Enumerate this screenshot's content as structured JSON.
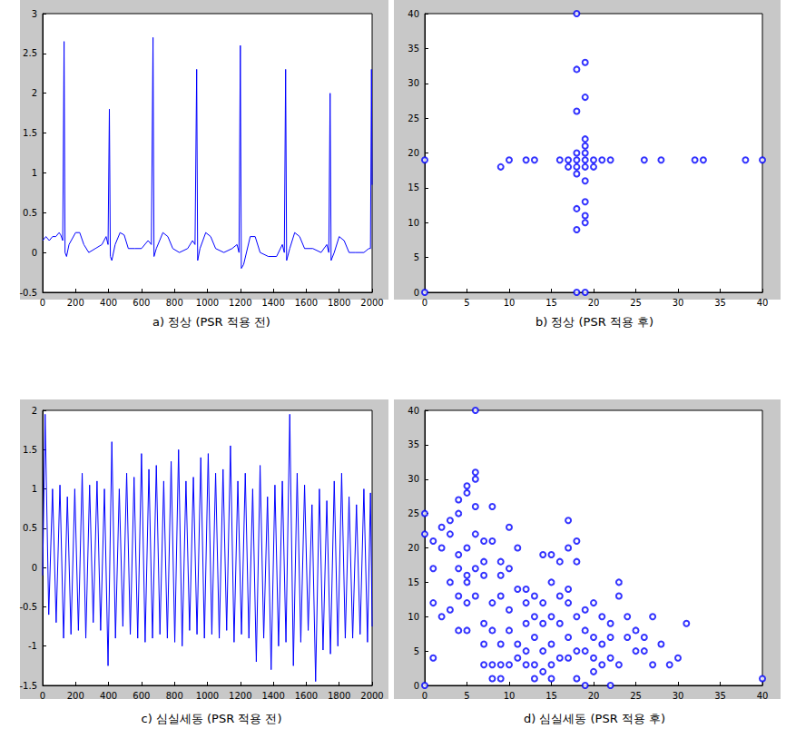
{
  "chart_data": [
    {
      "type": "line",
      "title": "a) 정상 (PSR 적용 전)",
      "color": "#0000ff",
      "line_style": "solid",
      "grid": false,
      "x": [
        0,
        20,
        40,
        60,
        80,
        100,
        110,
        122,
        130,
        136,
        145,
        160,
        200,
        225,
        250,
        280,
        320,
        360,
        385,
        397,
        405,
        411,
        420,
        440,
        470,
        495,
        520,
        560,
        600,
        640,
        660,
        670,
        676,
        690,
        730,
        760,
        790,
        830,
        880,
        910,
        925,
        935,
        941,
        955,
        990,
        1020,
        1050,
        1100,
        1150,
        1180,
        1192,
        1200,
        1206,
        1220,
        1260,
        1290,
        1320,
        1370,
        1420,
        1455,
        1467,
        1475,
        1481,
        1500,
        1530,
        1560,
        1590,
        1640,
        1690,
        1725,
        1737,
        1745,
        1751,
        1770,
        1800,
        1830,
        1860,
        1900,
        1950,
        1980,
        1990,
        1996,
        2000
      ],
      "values": [
        0.15,
        0.2,
        0.15,
        0.2,
        0.2,
        0.25,
        0.22,
        0.15,
        2.65,
        0,
        -0.05,
        0.1,
        0.25,
        0.25,
        0.1,
        0,
        0.05,
        0.1,
        0.2,
        0.1,
        1.8,
        -0.05,
        -0.1,
        0.1,
        0.25,
        0.22,
        0.05,
        0.05,
        0.05,
        0.15,
        0.1,
        2.7,
        -0.05,
        0.05,
        0.25,
        0.2,
        0.05,
        0,
        0.05,
        0.15,
        0.1,
        2.3,
        -0.1,
        0.05,
        0.25,
        0.2,
        0.05,
        0,
        0.05,
        0.1,
        0,
        2.6,
        -0.2,
        -0.15,
        0.2,
        0.2,
        0,
        -0.05,
        -0.05,
        0.1,
        0,
        2.3,
        -0.1,
        0.05,
        0.25,
        0.2,
        0.05,
        0.05,
        0,
        0.1,
        0,
        2.0,
        -0.1,
        0,
        0.2,
        0.15,
        0,
        0,
        0,
        0.05,
        0.05,
        2.3,
        0.85
      ],
      "xlim": [
        0,
        2000
      ],
      "xticks": [
        0,
        200,
        400,
        600,
        800,
        1000,
        1200,
        1400,
        1600,
        1800,
        2000
      ],
      "ylim": [
        -0.5,
        3
      ],
      "yticks": [
        -0.5,
        0,
        0.5,
        1,
        1.5,
        2,
        2.5,
        3
      ]
    },
    {
      "type": "scatter",
      "title": "b) 정상 (PSR 적용 후)",
      "color": "#0000ff",
      "marker": "circle",
      "grid": false,
      "x": [
        0,
        0,
        9,
        10,
        12,
        13,
        16,
        17,
        17,
        18,
        18,
        18,
        18,
        19,
        19,
        19,
        19,
        19,
        20,
        20,
        21,
        22,
        26,
        28,
        32,
        33,
        38,
        40,
        18,
        18,
        19,
        19,
        18,
        19,
        19,
        18,
        19,
        19,
        18,
        18,
        19
      ],
      "values": [
        19,
        0,
        18,
        19,
        19,
        19,
        19,
        18,
        19,
        17,
        18,
        19,
        20,
        19,
        18,
        20,
        21,
        22,
        19,
        18,
        19,
        19,
        19,
        19,
        19,
        19,
        19,
        19,
        40,
        32,
        33,
        28,
        26,
        16,
        13,
        12,
        11,
        10,
        9,
        0,
        0
      ],
      "xlim": [
        0,
        40
      ],
      "xticks": [
        0,
        5,
        10,
        15,
        20,
        25,
        30,
        35,
        40
      ],
      "ylim": [
        0,
        40
      ],
      "yticks": [
        0,
        5,
        10,
        15,
        20,
        25,
        30,
        35,
        40
      ]
    },
    {
      "type": "line",
      "title": "c) 심실세동 (PSR 적용 전)",
      "color": "#0000ff",
      "line_style": "solid",
      "grid": false,
      "x": [
        0,
        15,
        37,
        60,
        82,
        105,
        127,
        150,
        172,
        195,
        217,
        240,
        262,
        285,
        307,
        330,
        352,
        375,
        397,
        420,
        442,
        465,
        487,
        510,
        532,
        555,
        577,
        600,
        622,
        645,
        667,
        690,
        712,
        735,
        757,
        780,
        802,
        825,
        847,
        870,
        892,
        915,
        937,
        960,
        982,
        1005,
        1027,
        1050,
        1072,
        1095,
        1117,
        1140,
        1162,
        1185,
        1207,
        1230,
        1252,
        1275,
        1297,
        1320,
        1342,
        1365,
        1387,
        1410,
        1432,
        1455,
        1477,
        1500,
        1522,
        1545,
        1567,
        1590,
        1612,
        1635,
        1657,
        1680,
        1702,
        1725,
        1747,
        1770,
        1792,
        1815,
        1837,
        1860,
        1882,
        1905,
        1927,
        1950,
        1972,
        1990,
        2000
      ],
      "values": [
        -0.1,
        1.95,
        -0.6,
        1.0,
        -0.7,
        1.05,
        -0.9,
        0.9,
        -0.85,
        1.0,
        -0.8,
        1.2,
        -0.9,
        1.05,
        -0.7,
        1.1,
        -0.8,
        1.0,
        -1.25,
        1.6,
        -0.9,
        1.0,
        -0.75,
        1.2,
        -0.85,
        1.15,
        -0.9,
        1.45,
        -0.95,
        1.25,
        -0.9,
        1.3,
        -0.85,
        1.1,
        -0.9,
        1.35,
        -0.95,
        1.5,
        -1.0,
        1.1,
        -0.8,
        1.15,
        -0.85,
        1.4,
        -0.9,
        1.45,
        -0.85,
        1.2,
        -0.9,
        1.25,
        -0.8,
        1.55,
        -0.95,
        1.1,
        -0.85,
        1.2,
        -0.9,
        1.0,
        -1.2,
        1.3,
        -0.9,
        0.9,
        -1.3,
        1.05,
        -1.0,
        1.1,
        -0.95,
        1.95,
        -1.25,
        1.2,
        -0.95,
        1.05,
        -0.8,
        0.8,
        -1.45,
        1.0,
        -1.05,
        0.85,
        -1.1,
        1.1,
        -1.0,
        1.2,
        -0.9,
        0.9,
        -0.9,
        0.8,
        -0.85,
        1.0,
        -0.95,
        0.95,
        -0.75
      ],
      "xlim": [
        0,
        2000
      ],
      "xticks": [
        0,
        200,
        400,
        600,
        800,
        1000,
        1200,
        1400,
        1600,
        1800,
        2000
      ],
      "ylim": [
        -1.5,
        2
      ],
      "yticks": [
        -1.5,
        -1,
        -0.5,
        0,
        0.5,
        1,
        1.5,
        2
      ]
    },
    {
      "type": "scatter",
      "title": "d) 심실세동 (PSR 적용 후)",
      "color": "#0000ff",
      "marker": "circle",
      "grid": false,
      "x": [
        0,
        0,
        0,
        1,
        1,
        1,
        1,
        2,
        2,
        2,
        3,
        3,
        3,
        3,
        4,
        4,
        4,
        4,
        4,
        4,
        5,
        5,
        5,
        5,
        5,
        5,
        5,
        6,
        6,
        6,
        6,
        6,
        6,
        6,
        7,
        7,
        7,
        7,
        7,
        7,
        8,
        8,
        8,
        8,
        8,
        8,
        9,
        9,
        9,
        9,
        9,
        9,
        10,
        10,
        10,
        10,
        10,
        11,
        11,
        11,
        11,
        12,
        12,
        12,
        12,
        13,
        13,
        13,
        13,
        13,
        14,
        14,
        14,
        14,
        14,
        15,
        15,
        15,
        15,
        15,
        16,
        16,
        16,
        16,
        17,
        17,
        17,
        17,
        17,
        17,
        18,
        18,
        18,
        18,
        18,
        19,
        19,
        19,
        19,
        20,
        20,
        20,
        20,
        21,
        21,
        21,
        22,
        22,
        22,
        22,
        23,
        23,
        23,
        24,
        24,
        25,
        25,
        26,
        26,
        27,
        27,
        28,
        29,
        30,
        31,
        40,
        15,
        12
      ],
      "values": [
        0,
        22,
        25,
        12,
        17,
        21,
        4,
        20,
        23,
        10,
        15,
        22,
        24,
        11,
        27,
        19,
        17,
        13,
        25,
        8,
        28,
        29,
        20,
        16,
        15,
        12,
        8,
        31,
        30,
        26,
        22,
        17,
        13,
        40,
        21,
        18,
        16,
        9,
        6,
        3,
        26,
        21,
        12,
        8,
        3,
        1,
        18,
        16,
        13,
        6,
        3,
        1,
        23,
        17,
        11,
        8,
        3,
        20,
        14,
        6,
        4,
        14,
        9,
        5,
        3,
        13,
        10,
        7,
        3,
        1,
        19,
        12,
        9,
        5,
        2,
        19,
        15,
        10,
        6,
        3,
        18,
        13,
        9,
        4,
        24,
        20,
        14,
        12,
        7,
        4,
        21,
        18,
        10,
        5,
        1,
        11,
        8,
        5,
        0,
        12,
        7,
        4,
        2,
        10,
        6,
        3,
        9,
        7,
        4,
        0,
        15,
        13,
        3,
        10,
        7,
        8,
        5,
        7,
        5,
        10,
        3,
        6,
        3,
        4,
        9,
        1,
        1,
        12
      ],
      "xlim": [
        0,
        40
      ],
      "xticks": [
        0,
        5,
        10,
        15,
        20,
        25,
        30,
        35,
        40
      ],
      "ylim": [
        0,
        40
      ],
      "yticks": [
        0,
        5,
        10,
        15,
        20,
        25,
        30,
        35,
        40
      ]
    }
  ]
}
